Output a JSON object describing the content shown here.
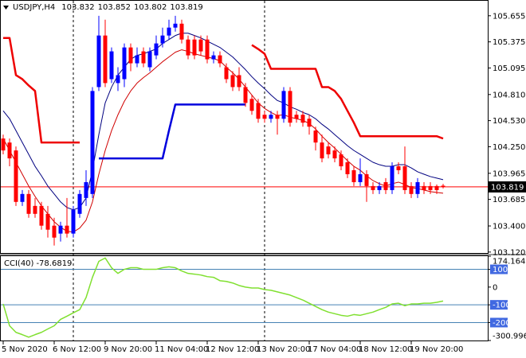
{
  "chart_data": [
    {
      "type": "candlestick",
      "symbol": "USDJPY,H4",
      "categories": [
        "5 Nov 2020",
        null,
        null,
        null,
        null,
        null,
        null,
        null,
        "6 Nov 12:00",
        null,
        null,
        null,
        null,
        null,
        null,
        null,
        "9 Nov 20:00",
        null,
        null,
        null,
        null,
        null,
        null,
        null,
        "11 Nov 04:00",
        null,
        null,
        null,
        null,
        null,
        null,
        null,
        "12 Nov 12:00",
        null,
        null,
        null,
        null,
        null,
        null,
        null,
        "13 Nov 20:00",
        null,
        null,
        null,
        null,
        null,
        null,
        null,
        "17 Nov 04:00",
        null,
        null,
        null,
        null,
        null,
        null,
        null,
        "18 Nov 12:00",
        null,
        null,
        null,
        null,
        null,
        null,
        null,
        "19 Nov 20:00",
        null,
        null,
        null,
        null,
        null
      ],
      "open": [
        104.338,
        104.295,
        104.21,
        103.658,
        103.743,
        103.615,
        103.615,
        103.53,
        103.403,
        103.318,
        103.403,
        103.318,
        103.53,
        103.7,
        103.743,
        104.89,
        105.443,
        104.975,
        104.933,
        104.975,
        105.315,
        105.145,
        105.273,
        105.103,
        105.23,
        105.358,
        105.443,
        105.528,
        105.57,
        105.4,
        105.4,
        105.4,
        105.4,
        105.188,
        105.23,
        105.103,
        105.018,
        105.018,
        104.89,
        104.763,
        104.72,
        104.593,
        104.55,
        104.593,
        104.55,
        104.848,
        104.593,
        104.593,
        104.55,
        104.423,
        104.295,
        104.253,
        104.21,
        104.168,
        104.083,
        103.998,
        103.87,
        103.955,
        103.828,
        103.785,
        103.87,
        103.785,
        104.04,
        104.04,
        103.828,
        103.743,
        103.828,
        103.828,
        103.828,
        103.832
      ],
      "high": [
        104.38,
        104.338,
        104.253,
        103.785,
        103.785,
        103.7,
        103.658,
        103.615,
        103.488,
        103.445,
        103.7,
        103.615,
        103.785,
        103.998,
        104.89,
        105.655,
        105.613,
        105.315,
        105.103,
        105.358,
        105.358,
        105.315,
        105.315,
        105.315,
        105.443,
        105.528,
        105.613,
        105.655,
        105.613,
        105.443,
        105.443,
        105.443,
        105.443,
        105.273,
        105.273,
        105.145,
        105.06,
        105.103,
        104.933,
        104.805,
        104.763,
        104.635,
        104.635,
        104.635,
        104.89,
        104.89,
        104.635,
        104.635,
        104.593,
        104.465,
        104.38,
        104.295,
        104.253,
        104.21,
        104.125,
        104.04,
        104.125,
        103.998,
        103.87,
        103.87,
        103.913,
        104.083,
        104.083,
        104.253,
        103.87,
        103.913,
        103.87,
        103.87,
        103.845,
        103.852
      ],
      "low": [
        104.168,
        104.04,
        103.615,
        103.615,
        103.488,
        103.488,
        103.36,
        103.275,
        103.19,
        103.233,
        103.275,
        103.275,
        103.488,
        103.615,
        103.7,
        104.848,
        104.89,
        104.933,
        104.848,
        104.89,
        105.06,
        105.103,
        105.103,
        105.06,
        105.188,
        105.315,
        105.4,
        105.485,
        105.358,
        105.188,
        105.188,
        105.23,
        105.145,
        105.145,
        105.103,
        104.933,
        104.848,
        104.848,
        104.678,
        104.593,
        104.508,
        104.508,
        104.508,
        104.38,
        104.508,
        104.465,
        104.508,
        104.465,
        104.38,
        104.21,
        104.083,
        104.125,
        104.083,
        103.998,
        103.913,
        103.828,
        103.828,
        103.658,
        103.743,
        103.743,
        103.743,
        103.743,
        103.955,
        103.743,
        103.7,
        103.7,
        103.743,
        103.743,
        103.743,
        103.802
      ],
      "close": [
        104.21,
        104.125,
        103.658,
        103.743,
        103.53,
        103.53,
        103.403,
        103.36,
        103.275,
        103.403,
        103.318,
        103.573,
        103.743,
        103.87,
        104.848,
        105.443,
        104.933,
        105.273,
        105.018,
        105.315,
        105.145,
        105.23,
        105.145,
        105.273,
        105.358,
        105.443,
        105.528,
        105.57,
        105.4,
        105.23,
        105.23,
        105.273,
        105.188,
        105.23,
        105.145,
        104.975,
        104.89,
        104.89,
        104.72,
        104.635,
        104.55,
        104.55,
        104.593,
        104.55,
        104.848,
        104.508,
        104.55,
        104.508,
        104.465,
        104.295,
        104.125,
        104.168,
        104.125,
        104.04,
        103.955,
        103.87,
        103.955,
        103.828,
        103.785,
        103.828,
        103.785,
        104.04,
        103.998,
        103.785,
        103.743,
        103.87,
        103.785,
        103.785,
        103.785,
        103.819
      ],
      "up_color": "#0000ff",
      "down_color": "#ff0000",
      "price_line_color": "#ff0000",
      "series": [
        {
          "color": "#000080",
          "width": 1,
          "values": [
            104.635,
            104.55,
            104.423,
            104.295,
            104.168,
            104.04,
            103.938,
            103.828,
            103.743,
            103.658,
            103.598,
            103.573,
            103.598,
            103.7,
            103.998,
            104.38,
            104.72,
            104.89,
            105.018,
            105.103,
            105.188,
            105.23,
            105.247,
            105.273,
            105.298,
            105.358,
            105.4,
            105.443,
            105.468,
            105.468,
            105.443,
            105.417,
            105.383,
            105.349,
            105.315,
            105.264,
            105.213,
            105.145,
            105.077,
            105.001,
            104.933,
            104.873,
            104.805,
            104.746,
            104.72,
            104.678,
            104.652,
            104.618,
            104.593,
            104.55,
            104.491,
            104.44,
            104.38,
            104.321,
            104.261,
            104.21,
            104.168,
            104.125,
            104.083,
            104.057,
            104.04,
            104.04,
            104.057,
            104.057,
            104.023,
            103.981,
            103.955,
            103.93,
            103.913,
            103.896
          ]
        },
        {
          "color": "#d00000",
          "width": 1,
          "values": [
            104.338,
            104.21,
            104.083,
            103.955,
            103.828,
            103.717,
            103.615,
            103.53,
            103.445,
            103.386,
            103.343,
            103.335,
            103.377,
            103.462,
            103.658,
            103.955,
            104.21,
            104.423,
            104.593,
            104.737,
            104.848,
            104.933,
            104.992,
            105.043,
            105.103,
            105.162,
            105.213,
            105.264,
            105.29,
            105.273,
            105.247,
            105.23,
            105.213,
            105.196,
            105.171,
            105.103,
            105.043,
            104.975,
            104.89,
            104.805,
            104.72,
            104.661,
            104.618,
            104.584,
            104.593,
            104.567,
            104.55,
            104.533,
            104.499,
            104.44,
            104.363,
            104.295,
            104.236,
            104.168,
            104.1,
            104.04,
            103.998,
            103.938,
            103.887,
            103.853,
            103.828,
            103.853,
            103.87,
            103.845,
            103.811,
            103.802,
            103.785,
            103.768,
            103.76,
            103.751
          ]
        },
        {
          "color": "#ee0000",
          "width": 2.5,
          "values": [
            105.417,
            105.417,
            105.018,
            104.975,
            104.907,
            104.848,
            104.295,
            104.295,
            104.295,
            104.295,
            104.295,
            104.295,
            104.295,
            null,
            null,
            null,
            null,
            null,
            null,
            null,
            null,
            null,
            null,
            null,
            null,
            null,
            null,
            null,
            null,
            null,
            null,
            null,
            null,
            null,
            null,
            null,
            null,
            null,
            null,
            105.341,
            105.298,
            105.247,
            105.086,
            105.086,
            105.086,
            105.086,
            105.086,
            105.086,
            105.086,
            105.086,
            104.89,
            104.89,
            104.848,
            104.763,
            104.635,
            104.508,
            104.363,
            104.363,
            104.363,
            104.363,
            104.363,
            104.363,
            104.363,
            104.363,
            104.363,
            104.363,
            104.363,
            104.363,
            104.363,
            104.338
          ]
        },
        {
          "color": "#0000dd",
          "width": 2.5,
          "values": [
            null,
            null,
            null,
            null,
            null,
            null,
            null,
            null,
            null,
            null,
            null,
            null,
            null,
            null,
            null,
            104.125,
            104.125,
            104.125,
            104.125,
            104.125,
            104.125,
            104.125,
            104.125,
            104.125,
            104.125,
            104.125,
            104.423,
            104.703,
            104.703,
            104.703,
            104.703,
            104.703,
            104.703,
            104.703,
            104.703,
            104.703,
            104.703,
            104.703,
            104.703,
            null,
            null,
            null,
            null,
            null,
            null,
            null,
            null,
            null,
            null,
            null,
            null,
            null,
            null,
            null,
            null,
            null,
            null,
            null,
            null,
            null,
            null,
            null,
            null,
            null,
            null,
            null,
            null,
            null,
            null,
            null
          ]
        }
      ],
      "ylim": [
        103.11,
        105.79
      ],
      "yticks": [
        105.655,
        105.375,
        105.095,
        {
          "value": 104.81,
          "label": "104.810"
        },
        {
          "value": 104.53,
          "label": "104.530"
        },
        {
          "value": 104.25,
          "label": "104.250"
        },
        103.965,
        103.685,
        {
          "value": 103.4,
          "label": "103.400"
        },
        {
          "value": 103.12,
          "label": "103.120"
        }
      ]
    },
    {
      "type": "line",
      "title": "CCI(40)",
      "series": [
        {
          "color": "#80e030",
          "values": [
            -95,
            -218,
            -255,
            -268,
            -282,
            -268,
            -255,
            -236,
            -218,
            -182,
            -164,
            -145,
            -127,
            -59,
            55,
            145,
            164,
            109,
            77,
            100,
            109,
            109,
            100,
            100,
            100,
            109,
            114,
            109,
            91,
            77,
            73,
            68,
            59,
            55,
            36,
            32,
            23,
            9,
            0,
            -5,
            -5,
            -14,
            -18,
            -27,
            -36,
            -45,
            -59,
            -73,
            -91,
            -109,
            -127,
            -141,
            -150,
            -159,
            -164,
            -155,
            -159,
            -150,
            -141,
            -127,
            -114,
            -95,
            -91,
            -105,
            -95,
            -95,
            -91,
            -91,
            -86,
            -78.6819
          ]
        }
      ],
      "levels": [
        100,
        -100,
        -200
      ],
      "level_color": "#4682b4",
      "ylim": [
        -300.9964,
        174.1643
      ],
      "yticks": [
        174.1643,
        100,
        0,
        -100,
        -200,
        -300.9964
      ]
    }
  ]
}
